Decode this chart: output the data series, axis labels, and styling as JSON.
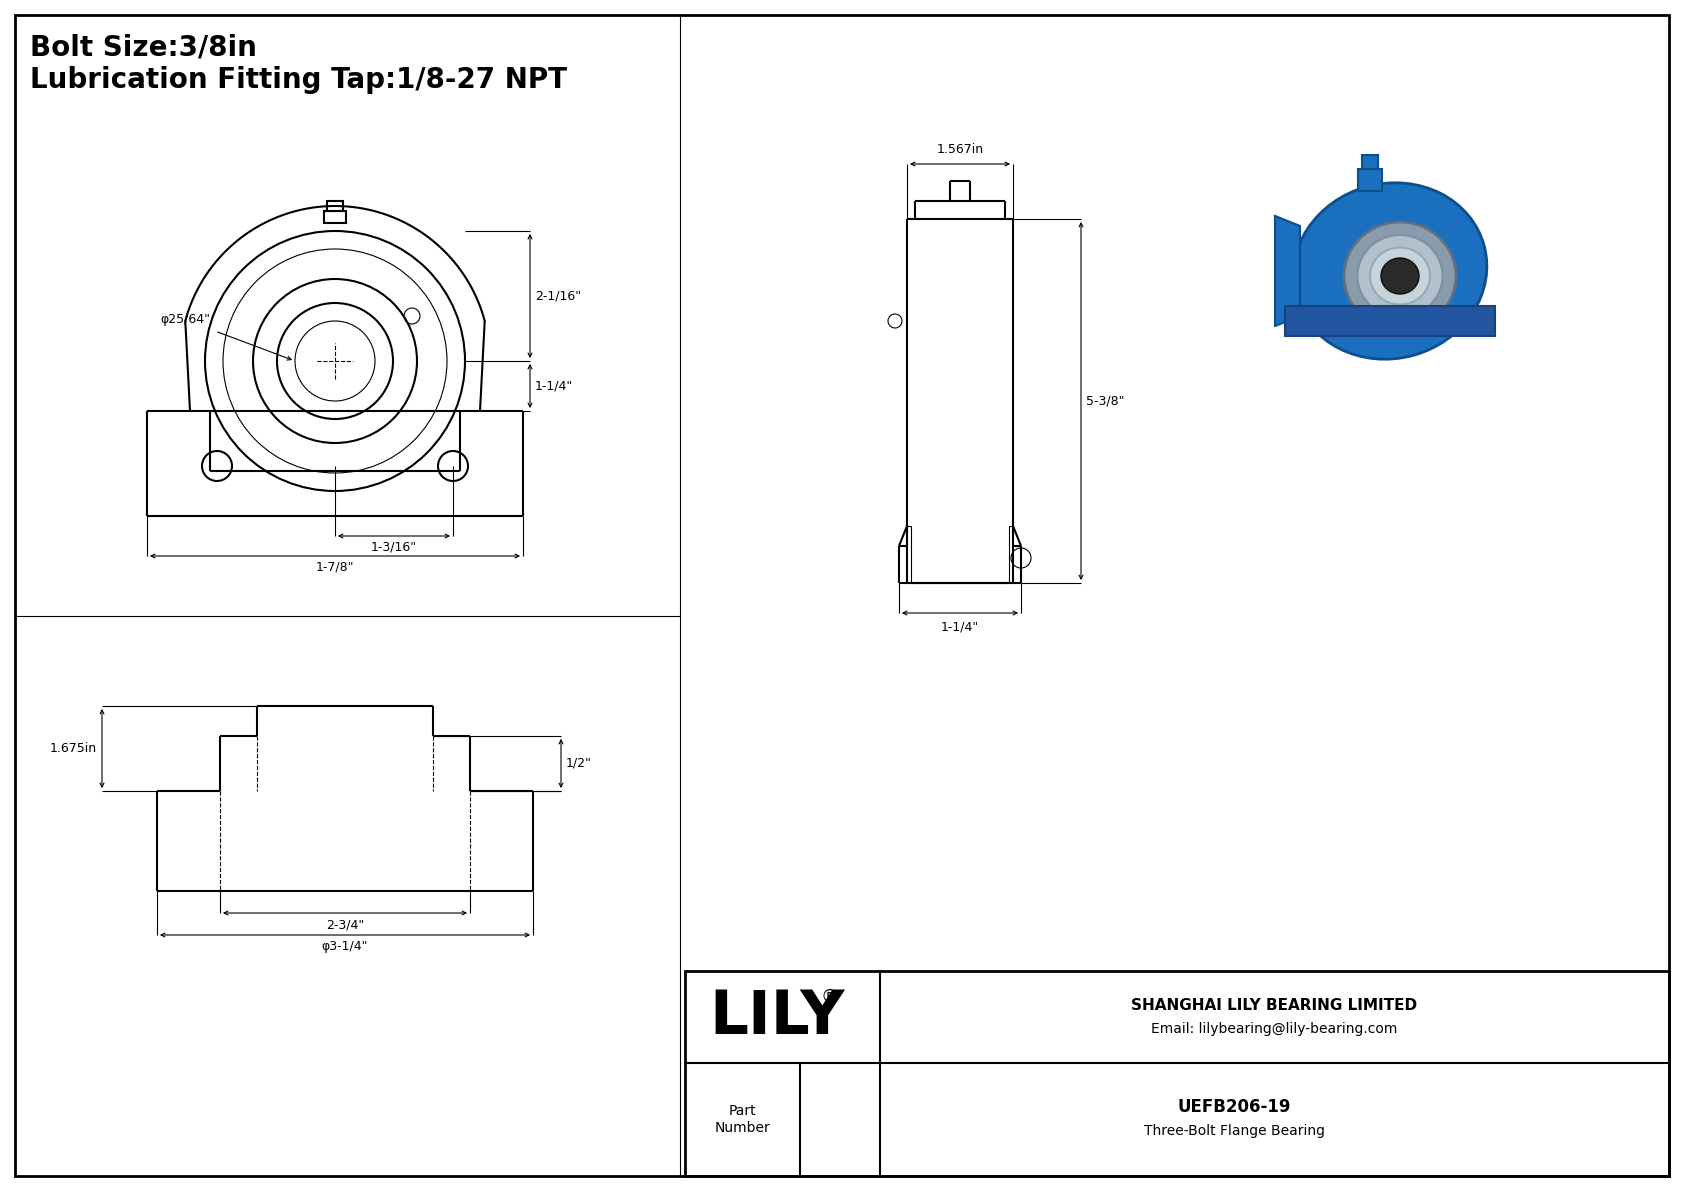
{
  "bg_color": "#ffffff",
  "line_color": "#000000",
  "title_line1": "Bolt Size:3/8in",
  "title_line2": "Lubrication Fitting Tap:1/8-27 NPT",
  "company": "SHANGHAI LILY BEARING LIMITED",
  "email": "Email: lilybearing@lily-bearing.com",
  "part_number_label": "Part\nNumber",
  "part_number": "UEFB206-19",
  "part_desc": "Three-Bolt Flange Bearing",
  "lily_logo": "LILY",
  "dim_bolt_hole": "φ25/64\"",
  "dim_2_1_16": "2-1/16\"",
  "dim_1_1_4_front": "1-1/4\"",
  "dim_1_3_16": "1-3/16\"",
  "dim_1_7_8": "1-7/8\"",
  "dim_1_567": "1.567in",
  "dim_5_3_8": "5-3/8\"",
  "dim_1_1_4_side": "1-1/4\"",
  "dim_1_675": "1.675in",
  "dim_1_2": "1/2\"",
  "dim_2_3_4": "2-3/4\"",
  "dim_3_1_4": "φ3-1/4\"",
  "font_size_title": 20,
  "font_size_dim": 9,
  "font_size_logo": 44,
  "font_size_company": 11,
  "font_size_part": 12,
  "lw": 1.5,
  "lw_thin": 0.8,
  "lw_thick": 2.0
}
